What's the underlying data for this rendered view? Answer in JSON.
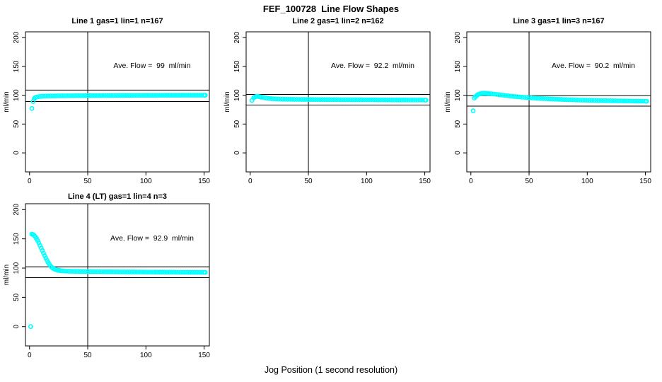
{
  "page": {
    "title": "FEF_100728  Line Flow Shapes",
    "xlabel": "Jog Position (1 second resolution)"
  },
  "colors": {
    "point": "#00ffff",
    "axis": "#000000",
    "background": "#ffffff"
  },
  "chart_data": [
    {
      "type": "scatter",
      "title": "Line 1 gas=1 lin=1 n=167",
      "annotation": "Ave. Flow =  99  ml/min",
      "ave_flow": 99,
      "ylabel": "ml/min",
      "xticks": [
        0,
        50,
        100,
        150
      ],
      "yticks": [
        0,
        50,
        100,
        150,
        200
      ],
      "xlim": [
        -3.5,
        154.5
      ],
      "ylim": [
        -33,
        210
      ],
      "grid": false,
      "vline_x": 50,
      "hlines": [
        108.9,
        89.1
      ],
      "points": [
        [
          2,
          77
        ],
        [
          3,
          89
        ],
        [
          4,
          94
        ],
        [
          5,
          95.8
        ],
        [
          6,
          96.8
        ],
        [
          8,
          97.6
        ],
        [
          10,
          98.1
        ],
        [
          12,
          98.3
        ],
        [
          14,
          98.5
        ],
        [
          16,
          98.6
        ],
        [
          18,
          98.7
        ],
        [
          20,
          98.8
        ],
        [
          22,
          98.85
        ],
        [
          24,
          98.9
        ],
        [
          26,
          98.95
        ],
        [
          28,
          99
        ],
        [
          30,
          99
        ],
        [
          32,
          99.05
        ],
        [
          34,
          99.1
        ],
        [
          36,
          99.1
        ],
        [
          38,
          99.15
        ],
        [
          40,
          99.2
        ],
        [
          42,
          99.2
        ],
        [
          44,
          99.25
        ],
        [
          46,
          99.25
        ],
        [
          48,
          99.3
        ],
        [
          50,
          99.3
        ],
        [
          52,
          99.3
        ],
        [
          54,
          99.35
        ],
        [
          56,
          99.35
        ],
        [
          58,
          99.4
        ],
        [
          60,
          99.4
        ],
        [
          62,
          99.4
        ],
        [
          64,
          99.45
        ],
        [
          66,
          99.45
        ],
        [
          68,
          99.5
        ],
        [
          70,
          99.5
        ],
        [
          72,
          99.5
        ],
        [
          74,
          99.55
        ],
        [
          76,
          99.55
        ],
        [
          78,
          99.6
        ],
        [
          80,
          99.6
        ],
        [
          82,
          99.6
        ],
        [
          84,
          99.6
        ],
        [
          86,
          99.65
        ],
        [
          88,
          99.65
        ],
        [
          90,
          99.7
        ],
        [
          92,
          99.7
        ],
        [
          94,
          99.7
        ],
        [
          96,
          99.7
        ],
        [
          98,
          99.75
        ],
        [
          100,
          99.75
        ],
        [
          102,
          99.8
        ],
        [
          104,
          99.8
        ],
        [
          106,
          99.8
        ],
        [
          108,
          99.8
        ],
        [
          110,
          99.85
        ],
        [
          112,
          99.85
        ],
        [
          114,
          99.85
        ],
        [
          116,
          99.9
        ],
        [
          118,
          99.9
        ],
        [
          120,
          99.9
        ],
        [
          122,
          99.9
        ],
        [
          124,
          99.95
        ],
        [
          126,
          99.95
        ],
        [
          128,
          99.95
        ],
        [
          130,
          100
        ],
        [
          132,
          100
        ],
        [
          134,
          100
        ],
        [
          136,
          100
        ],
        [
          138,
          100
        ],
        [
          140,
          100
        ],
        [
          142,
          100
        ],
        [
          144,
          100
        ],
        [
          146,
          100
        ],
        [
          148,
          100
        ],
        [
          150,
          100
        ],
        [
          151,
          100
        ]
      ]
    },
    {
      "type": "scatter",
      "title": "Line 2 gas=1 lin=2 n=162",
      "annotation": "Ave. Flow =  92.2  ml/min",
      "ave_flow": 92.2,
      "ylabel": "ml/min",
      "xticks": [
        0,
        50,
        100,
        150
      ],
      "yticks": [
        0,
        50,
        100,
        150,
        200
      ],
      "xlim": [
        -3.5,
        154.5
      ],
      "ylim": [
        -33,
        210
      ],
      "grid": false,
      "vline_x": 50,
      "hlines": [
        101.4,
        83.0
      ],
      "points": [
        [
          1.5,
          91
        ],
        [
          3,
          95.5
        ],
        [
          4,
          97
        ],
        [
          5,
          97.8
        ],
        [
          6,
          98
        ],
        [
          7,
          97.8
        ],
        [
          8,
          97.4
        ],
        [
          9,
          97
        ],
        [
          10,
          96.5
        ],
        [
          12,
          95.7
        ],
        [
          14,
          95
        ],
        [
          16,
          94.5
        ],
        [
          18,
          94.1
        ],
        [
          20,
          93.8
        ],
        [
          22,
          93.6
        ],
        [
          24,
          93.4
        ],
        [
          26,
          93.3
        ],
        [
          28,
          93.2
        ],
        [
          30,
          93.1
        ],
        [
          32,
          93
        ],
        [
          34,
          93
        ],
        [
          36,
          92.9
        ],
        [
          38,
          92.9
        ],
        [
          40,
          92.8
        ],
        [
          42,
          92.8
        ],
        [
          44,
          92.7
        ],
        [
          46,
          92.7
        ],
        [
          48,
          92.7
        ],
        [
          50,
          92.6
        ],
        [
          52,
          92.6
        ],
        [
          54,
          92.6
        ],
        [
          56,
          92.5
        ],
        [
          58,
          92.5
        ],
        [
          60,
          92.5
        ],
        [
          62,
          92.4
        ],
        [
          64,
          92.4
        ],
        [
          66,
          92.4
        ],
        [
          68,
          92.4
        ],
        [
          70,
          92.3
        ],
        [
          72,
          92.3
        ],
        [
          74,
          92.3
        ],
        [
          76,
          92.3
        ],
        [
          78,
          92.2
        ],
        [
          80,
          92.2
        ],
        [
          82,
          92.2
        ],
        [
          84,
          92.2
        ],
        [
          86,
          92.2
        ],
        [
          88,
          92.1
        ],
        [
          90,
          92.1
        ],
        [
          92,
          92.1
        ],
        [
          94,
          92.1
        ],
        [
          96,
          92.1
        ],
        [
          98,
          92
        ],
        [
          100,
          92
        ],
        [
          102,
          92
        ],
        [
          104,
          92
        ],
        [
          106,
          92
        ],
        [
          108,
          92
        ],
        [
          110,
          91.9
        ],
        [
          112,
          91.9
        ],
        [
          114,
          91.9
        ],
        [
          116,
          91.9
        ],
        [
          118,
          91.9
        ],
        [
          120,
          91.9
        ],
        [
          122,
          91.8
        ],
        [
          124,
          91.8
        ],
        [
          126,
          91.8
        ],
        [
          128,
          91.8
        ],
        [
          130,
          91.8
        ],
        [
          132,
          91.8
        ],
        [
          134,
          91.8
        ],
        [
          136,
          91.7
        ],
        [
          138,
          91.7
        ],
        [
          140,
          91.7
        ],
        [
          142,
          91.7
        ],
        [
          144,
          91.7
        ],
        [
          146,
          91.7
        ],
        [
          148,
          91.7
        ],
        [
          150,
          91.6
        ],
        [
          151,
          91.6
        ]
      ]
    },
    {
      "type": "scatter",
      "title": "Line 3 gas=1 lin=3 n=167",
      "annotation": "Ave. Flow =  90.2  ml/min",
      "ave_flow": 90.2,
      "ylabel": "ml/min",
      "xticks": [
        0,
        50,
        100,
        150
      ],
      "yticks": [
        0,
        50,
        100,
        150,
        200
      ],
      "xlim": [
        -3.5,
        154.5
      ],
      "ylim": [
        -33,
        210
      ],
      "grid": false,
      "vline_x": 50,
      "hlines": [
        99.2,
        81.2
      ],
      "points": [
        [
          2,
          73
        ],
        [
          3,
          95
        ],
        [
          4,
          97.5
        ],
        [
          5,
          99.5
        ],
        [
          6,
          101
        ],
        [
          7,
          102
        ],
        [
          8,
          102.6
        ],
        [
          9,
          103
        ],
        [
          10,
          103.2
        ],
        [
          11,
          103.3
        ],
        [
          12,
          103.3
        ],
        [
          13,
          103.2
        ],
        [
          14,
          103.1
        ],
        [
          15,
          103
        ],
        [
          16,
          102.8
        ],
        [
          18,
          102.4
        ],
        [
          20,
          102
        ],
        [
          22,
          101.5
        ],
        [
          24,
          101
        ],
        [
          26,
          100.5
        ],
        [
          28,
          100
        ],
        [
          30,
          99.5
        ],
        [
          32,
          99
        ],
        [
          34,
          98.5
        ],
        [
          36,
          98.1
        ],
        [
          38,
          97.7
        ],
        [
          40,
          97.3
        ],
        [
          42,
          96.9
        ],
        [
          44,
          96.6
        ],
        [
          46,
          96.3
        ],
        [
          48,
          96
        ],
        [
          50,
          95.7
        ],
        [
          52,
          95.4
        ],
        [
          54,
          95.1
        ],
        [
          56,
          94.9
        ],
        [
          58,
          94.6
        ],
        [
          60,
          94.4
        ],
        [
          62,
          94.2
        ],
        [
          64,
          94
        ],
        [
          66,
          93.8
        ],
        [
          68,
          93.6
        ],
        [
          70,
          93.4
        ],
        [
          72,
          93.2
        ],
        [
          74,
          93
        ],
        [
          76,
          92.9
        ],
        [
          78,
          92.7
        ],
        [
          80,
          92.5
        ],
        [
          82,
          92.4
        ],
        [
          84,
          92.2
        ],
        [
          86,
          92.1
        ],
        [
          88,
          92
        ],
        [
          90,
          91.8
        ],
        [
          92,
          91.7
        ],
        [
          94,
          91.6
        ],
        [
          96,
          91.5
        ],
        [
          98,
          91.4
        ],
        [
          100,
          91.3
        ],
        [
          102,
          91.2
        ],
        [
          104,
          91.1
        ],
        [
          106,
          91
        ],
        [
          108,
          90.9
        ],
        [
          110,
          90.8
        ],
        [
          112,
          90.7
        ],
        [
          114,
          90.7
        ],
        [
          116,
          90.6
        ],
        [
          118,
          90.5
        ],
        [
          120,
          90.4
        ],
        [
          122,
          90.4
        ],
        [
          124,
          90.3
        ],
        [
          126,
          90.2
        ],
        [
          128,
          90.2
        ],
        [
          130,
          90.1
        ],
        [
          132,
          90.1
        ],
        [
          134,
          90
        ],
        [
          136,
          90
        ],
        [
          138,
          89.9
        ],
        [
          140,
          89.9
        ],
        [
          142,
          89.8
        ],
        [
          144,
          89.8
        ],
        [
          146,
          89.7
        ],
        [
          148,
          89.7
        ],
        [
          150,
          89.6
        ],
        [
          151,
          89.6
        ]
      ]
    },
    {
      "type": "scatter",
      "title": "Line 4 (LT) gas=1 lin=4 n=3",
      "annotation": "Ave. Flow =  92.9  ml/min",
      "ave_flow": 92.9,
      "ylabel": "ml/min",
      "xticks": [
        0,
        50,
        100,
        150
      ],
      "yticks": [
        0,
        50,
        100,
        150,
        200
      ],
      "xlim": [
        -3.5,
        154.5
      ],
      "ylim": [
        -33,
        210
      ],
      "grid": false,
      "vline_x": 50,
      "hlines": [
        102.2,
        83.6
      ],
      "points": [
        [
          1,
          0
        ],
        [
          2,
          158
        ],
        [
          3,
          157.3
        ],
        [
          4,
          155.8
        ],
        [
          5,
          153.5
        ],
        [
          6,
          150.5
        ],
        [
          7,
          147
        ],
        [
          8,
          143
        ],
        [
          9,
          138.8
        ],
        [
          10,
          134.4
        ],
        [
          11,
          130
        ],
        [
          12,
          125.6
        ],
        [
          13,
          121.3
        ],
        [
          14,
          117.2
        ],
        [
          15,
          113.3
        ],
        [
          16,
          109.7
        ],
        [
          17,
          106.5
        ],
        [
          18,
          103.8
        ],
        [
          19,
          101.6
        ],
        [
          20,
          100
        ],
        [
          21,
          98.8
        ],
        [
          22,
          97.9
        ],
        [
          23,
          97.2
        ],
        [
          24,
          96.6
        ],
        [
          25,
          96.1
        ],
        [
          26,
          95.7
        ],
        [
          28,
          95.2
        ],
        [
          30,
          94.9
        ],
        [
          32,
          94.7
        ],
        [
          34,
          94.6
        ],
        [
          36,
          94.5
        ],
        [
          38,
          94.4
        ],
        [
          40,
          94.3
        ],
        [
          42,
          94.3
        ],
        [
          44,
          94.2
        ],
        [
          46,
          94.2
        ],
        [
          48,
          94.1
        ],
        [
          50,
          94.1
        ],
        [
          52,
          94
        ],
        [
          54,
          94
        ],
        [
          56,
          93.9
        ],
        [
          58,
          93.9
        ],
        [
          60,
          93.9
        ],
        [
          62,
          93.8
        ],
        [
          64,
          93.8
        ],
        [
          66,
          93.7
        ],
        [
          68,
          93.7
        ],
        [
          70,
          93.7
        ],
        [
          72,
          93.6
        ],
        [
          74,
          93.6
        ],
        [
          76,
          93.6
        ],
        [
          78,
          93.5
        ],
        [
          80,
          93.5
        ],
        [
          82,
          93.5
        ],
        [
          84,
          93.4
        ],
        [
          86,
          93.4
        ],
        [
          88,
          93.4
        ],
        [
          90,
          93.4
        ],
        [
          92,
          93.3
        ],
        [
          94,
          93.3
        ],
        [
          96,
          93.3
        ],
        [
          98,
          93.3
        ],
        [
          100,
          93.2
        ],
        [
          102,
          93.2
        ],
        [
          104,
          93.2
        ],
        [
          106,
          93.2
        ],
        [
          108,
          93.1
        ],
        [
          110,
          93.1
        ],
        [
          112,
          93.1
        ],
        [
          114,
          93.1
        ],
        [
          116,
          93
        ],
        [
          118,
          93
        ],
        [
          120,
          93
        ],
        [
          122,
          93
        ],
        [
          124,
          93
        ],
        [
          126,
          92.9
        ],
        [
          128,
          92.9
        ],
        [
          130,
          92.9
        ],
        [
          132,
          92.9
        ],
        [
          134,
          92.9
        ],
        [
          136,
          92.8
        ],
        [
          138,
          92.8
        ],
        [
          140,
          92.8
        ],
        [
          142,
          92.8
        ],
        [
          144,
          92.8
        ],
        [
          146,
          92.7
        ],
        [
          148,
          92.7
        ],
        [
          150,
          92.7
        ],
        [
          151,
          92.7
        ]
      ]
    }
  ]
}
